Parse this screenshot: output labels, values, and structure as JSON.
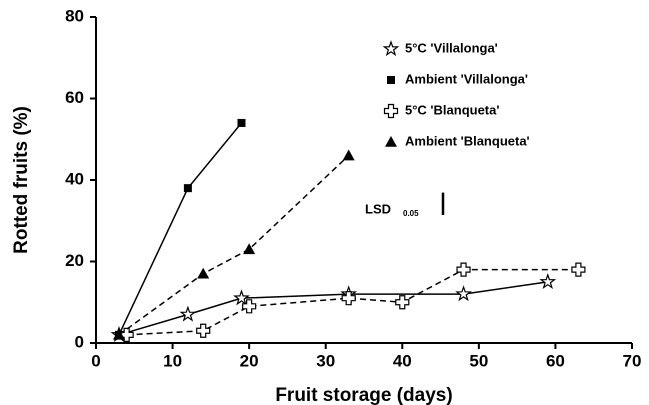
{
  "chart_data": {
    "type": "line",
    "xlabel": "Fruit storage (days)",
    "ylabel": "Rotted fruits (%)",
    "xlim": [
      0,
      70
    ],
    "xticks": [
      0,
      10,
      20,
      30,
      40,
      50,
      60,
      70
    ],
    "ylim": [
      0,
      80
    ],
    "yticks": [
      0,
      20,
      40,
      60,
      80
    ],
    "legend": "upper right",
    "series": [
      {
        "name": "5°C  'Villalonga'",
        "color": "#000000",
        "marker": "star",
        "dashed": false,
        "x": [
          3,
          12,
          19,
          33,
          48,
          59
        ],
        "y": [
          2,
          7,
          11,
          12,
          12,
          15
        ]
      },
      {
        "name": "Ambient  'Villalonga'",
        "color": "#000000",
        "marker": "square",
        "dashed": false,
        "x": [
          3,
          12,
          19
        ],
        "y": [
          2,
          38,
          54
        ]
      },
      {
        "name": "5°C  'Blanqueta'",
        "color": "#000000",
        "marker": "cross",
        "dashed": true,
        "x": [
          4,
          14,
          20,
          33,
          40,
          48,
          63
        ],
        "y": [
          2,
          3,
          9,
          11,
          10,
          18,
          18
        ]
      },
      {
        "name": "Ambient  'Blanqueta'",
        "color": "#000000",
        "marker": "triangle",
        "dashed": true,
        "x": [
          3,
          14,
          20,
          33
        ],
        "y": [
          2,
          17,
          23,
          46
        ]
      }
    ],
    "annotation": {
      "text": "LSD",
      "subscript": "0.05",
      "value": 5.5
    }
  }
}
